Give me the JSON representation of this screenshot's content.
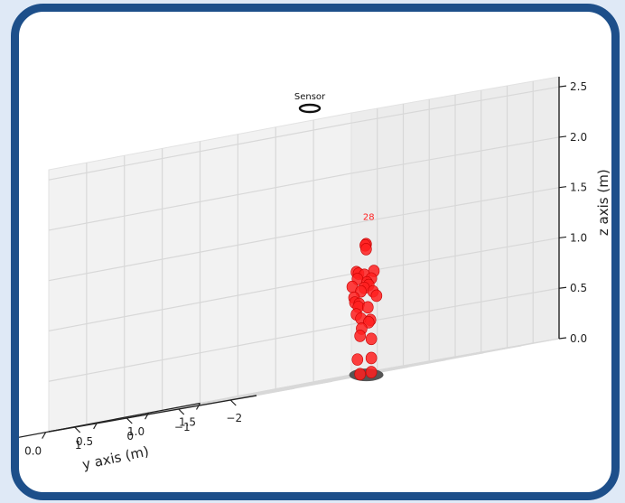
{
  "chart_data": {
    "type": "scatter",
    "projection": "3d",
    "zlabel": "z axis (m)",
    "ylabel": "y axis (m)",
    "xlabel": "",
    "zlim": [
      0,
      2.6
    ],
    "ylim": [
      -2.5,
      1.5
    ],
    "xlim": [
      -0.5,
      2
    ],
    "z_ticks": [
      "0.0",
      "0.5",
      "1.0",
      "1.5",
      "2.0",
      "2.5"
    ],
    "y_ticks": [
      "-2",
      "-1",
      "0",
      "1"
    ],
    "x_ticks": [
      "1.5",
      "1.0",
      "0.5",
      "0.0"
    ],
    "grid": true,
    "sensor": {
      "label": "Sensor",
      "x": 0,
      "y": 0,
      "z": 2.5
    },
    "target": {
      "label": "28",
      "color": "#ff2020",
      "base_color": "#555555",
      "points": [
        {
          "x": 0.0,
          "y": 0.05,
          "z": 1.28
        },
        {
          "x": 0.05,
          "y": -0.05,
          "z": 1.27
        },
        {
          "x": 0.0,
          "y": 0.05,
          "z": 1.23
        },
        {
          "x": 0.08,
          "y": 0.05,
          "z": 1.02
        },
        {
          "x": 0.02,
          "y": 0.15,
          "z": 1.0
        },
        {
          "x": 0.0,
          "y": -0.1,
          "z": 1.0
        },
        {
          "x": 0.1,
          "y": -0.15,
          "z": 0.98
        },
        {
          "x": 0.05,
          "y": 0.1,
          "z": 0.95
        },
        {
          "x": 0.0,
          "y": -0.05,
          "z": 0.93
        },
        {
          "x": 0.1,
          "y": -0.2,
          "z": 0.9
        },
        {
          "x": 0.05,
          "y": 0.2,
          "z": 0.88
        },
        {
          "x": 0.0,
          "y": 0.0,
          "z": 0.87
        },
        {
          "x": 0.08,
          "y": -0.1,
          "z": 0.85
        },
        {
          "x": 0.0,
          "y": 0.15,
          "z": 0.82
        },
        {
          "x": 0.05,
          "y": -0.2,
          "z": 0.8
        },
        {
          "x": 0.1,
          "y": 0.05,
          "z": 0.77
        },
        {
          "x": 0.0,
          "y": -0.15,
          "z": 0.75
        },
        {
          "x": 0.05,
          "y": 0.15,
          "z": 0.72
        },
        {
          "x": 0.1,
          "y": -0.05,
          "z": 0.7
        },
        {
          "x": 0.0,
          "y": 0.2,
          "z": 0.67
        },
        {
          "x": 0.05,
          "y": -0.1,
          "z": 0.65
        },
        {
          "x": 0.08,
          "y": 0.05,
          "z": 0.6
        },
        {
          "x": 0.0,
          "y": 0.15,
          "z": 0.55
        },
        {
          "x": 0.05,
          "y": -0.15,
          "z": 0.52
        },
        {
          "x": 0.0,
          "y": 0.0,
          "z": 0.5
        },
        {
          "x": 0.08,
          "y": -0.05,
          "z": 0.45
        },
        {
          "x": 0.05,
          "y": 0.05,
          "z": 0.38
        },
        {
          "x": 0.0,
          "y": -0.05,
          "z": 0.33
        },
        {
          "x": 0.05,
          "y": 0.1,
          "z": 0.15
        },
        {
          "x": 0.0,
          "y": -0.05,
          "z": 0.14
        },
        {
          "x": 0.05,
          "y": 0.05,
          "z": 0.0
        },
        {
          "x": 0.0,
          "y": -0.05,
          "z": 0.0
        }
      ]
    }
  },
  "colors": {
    "frame_border": "#1d4f8a",
    "backdrop": "#dfe9f6",
    "pane": "#f2f2f2",
    "grid": "#d8d8d8",
    "axis": "#222222"
  }
}
